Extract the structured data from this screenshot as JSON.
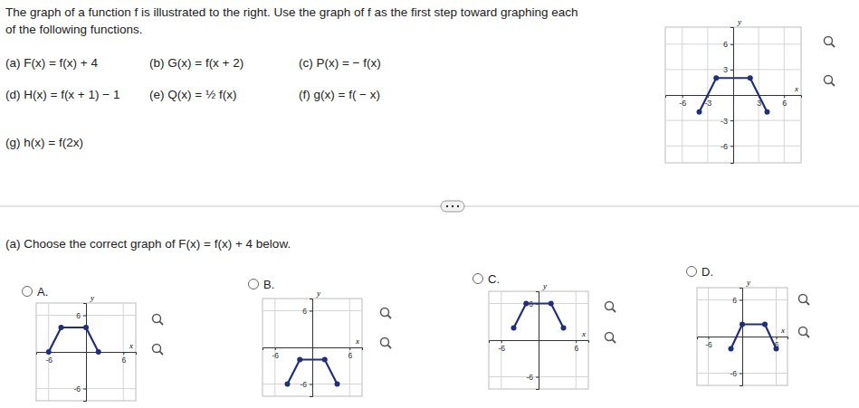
{
  "header": "The graph of a function f is illustrated to the right. Use the graph of f as the first step toward graphing each of the following functions.",
  "items": [
    "(a) F(x) = f(x) + 4",
    "(b) G(x) = f(x + 2)",
    "(c) P(x) = − f(x)",
    "(d) H(x) = f(x + 1) − 1",
    "(e) Q(x) = ½ f(x)",
    "(f) g(x) = f( − x)",
    "(g) h(x) = f(2x)"
  ],
  "question": "(a) Choose the correct graph of F(x) = f(x) + 4 below.",
  "options": [
    "A.",
    "B.",
    "C.",
    "D."
  ],
  "chart_data": [
    {
      "type": "line",
      "xlabel": "x",
      "ylabel": "y",
      "x": [
        -4,
        -2,
        2,
        4
      ],
      "values": [
        -2,
        2,
        2,
        -2
      ],
      "xlim": [
        -8,
        8
      ],
      "ylim": [
        -8,
        8
      ],
      "xticks": [
        -6,
        -3,
        3,
        6
      ],
      "yticks": [
        -6,
        -3,
        3,
        6
      ],
      "grid": true,
      "marker": "circle",
      "color": "#1f2f7a"
    },
    {
      "type": "line",
      "xlabel": "x",
      "ylabel": "y",
      "x": [
        -6,
        -4,
        0,
        2
      ],
      "values": [
        0,
        4,
        4,
        0
      ],
      "xlim": [
        -8,
        8
      ],
      "ylim": [
        -8,
        8
      ],
      "xticks": [
        -6,
        6
      ],
      "yticks": [
        -6,
        6
      ],
      "grid": true,
      "marker": "circle",
      "color": "#1f2f7a"
    },
    {
      "type": "line",
      "xlabel": "x",
      "ylabel": "y",
      "x": [
        -4,
        -2,
        2,
        4
      ],
      "values": [
        -6,
        -2,
        -2,
        -6
      ],
      "xlim": [
        -8,
        8
      ],
      "ylim": [
        -8,
        8
      ],
      "xticks": [
        -6,
        6
      ],
      "yticks": [
        -6,
        6
      ],
      "grid": true,
      "marker": "circle",
      "color": "#1f2f7a"
    },
    {
      "type": "line",
      "xlabel": "x",
      "ylabel": "y",
      "x": [
        -4,
        -2,
        2,
        4
      ],
      "values": [
        2,
        6,
        6,
        2
      ],
      "xlim": [
        -8,
        8
      ],
      "ylim": [
        -8,
        8
      ],
      "xticks": [
        -6,
        6
      ],
      "yticks": [
        -6,
        6
      ],
      "grid": true,
      "marker": "circle",
      "color": "#1f2f7a"
    },
    {
      "type": "line",
      "xlabel": "x",
      "ylabel": "y",
      "x": [
        -2,
        0,
        4,
        6
      ],
      "values": [
        -2,
        2,
        2,
        -2
      ],
      "xlim": [
        -8,
        8
      ],
      "ylim": [
        -8,
        8
      ],
      "xticks": [
        -6,
        6
      ],
      "yticks": [
        -6,
        6
      ],
      "grid": true,
      "marker": "circle",
      "color": "#1f2f7a"
    }
  ]
}
